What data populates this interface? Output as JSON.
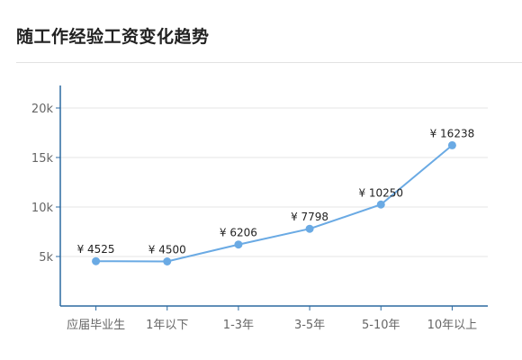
{
  "header": {
    "title": "随工作经验工资变化趋势"
  },
  "chart_data": {
    "type": "line",
    "title": "随工作经验工资变化趋势",
    "xlabel": "",
    "ylabel": "",
    "categories": [
      "应届毕业生",
      "1年以下",
      "1-3年",
      "3-5年",
      "5-10年",
      "10年以上"
    ],
    "values": [
      4525,
      4500,
      6206,
      7798,
      10250,
      16238
    ],
    "data_labels": [
      "¥ 4525",
      "¥ 4500",
      "¥ 6206",
      "¥ 7798",
      "¥ 10250",
      "¥ 16238"
    ],
    "ylim": [
      0,
      20000
    ],
    "yticks": [
      5000,
      10000,
      15000,
      20000
    ],
    "ytick_labels": [
      "5k",
      "10k",
      "15k",
      "20k"
    ],
    "grid": true,
    "legend": "none",
    "colors": {
      "line": "#6aaae4",
      "axis": "#2c6aa0",
      "grid": "#e6e6e6",
      "tick_text": "#666666",
      "label_text": "#222222"
    }
  }
}
